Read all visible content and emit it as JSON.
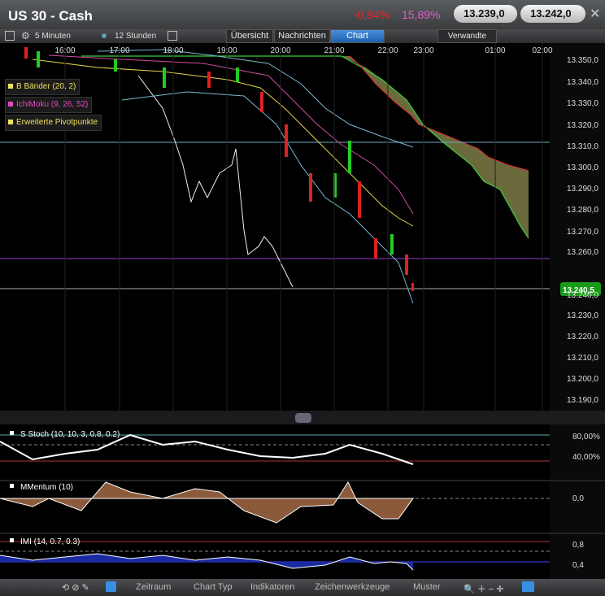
{
  "header": {
    "title": "US 30 - Cash",
    "change": "-0,94%",
    "volatility": "15,89%",
    "bid": "13.239,0",
    "ask": "13.242,0"
  },
  "toolbar": {
    "interval": "5 Minuten",
    "range": "12 Stunden",
    "tabs": [
      "Übersicht",
      "Nachrichten",
      "Chart",
      "Verwandte"
    ]
  },
  "chart": {
    "times": [
      "16:00",
      "17:00",
      "18:00",
      "19:00",
      "20:00",
      "21:00",
      "22:00",
      "23:00",
      "01:00",
      "02:00"
    ],
    "prices": [
      "13.350,0",
      "13.340,0",
      "13.330,0",
      "13.320,0",
      "13.310,0",
      "13.300,0",
      "13.290,0",
      "13.280,0",
      "13.270,0",
      "13.260,0",
      "13.240,0",
      "13.230,0",
      "13.220,0",
      "13.210,0",
      "13.200,0",
      "13.190,0"
    ],
    "current_price": "13.240,5",
    "legend": [
      "B Bänder (20, 2)",
      "IchiMoku (9, 26, 52)",
      "Erweiterte Pivotpunkte"
    ]
  },
  "indicators": [
    {
      "label": "S Stoch (10, 10, 3, 0.8, 0.2)",
      "levels": [
        "80,00%",
        "40,00%"
      ]
    },
    {
      "label": "MMentum (10)",
      "levels": [
        "0,0"
      ]
    },
    {
      "label": "IMI (14, 0.7, 0.3)",
      "levels": [
        "0,8",
        "0,4"
      ]
    }
  ],
  "bottom": {
    "menus": [
      "Zeitraum",
      "Chart Typ",
      "Indikatoren",
      "Zeichenwerkzeuge",
      "Muster"
    ]
  }
}
